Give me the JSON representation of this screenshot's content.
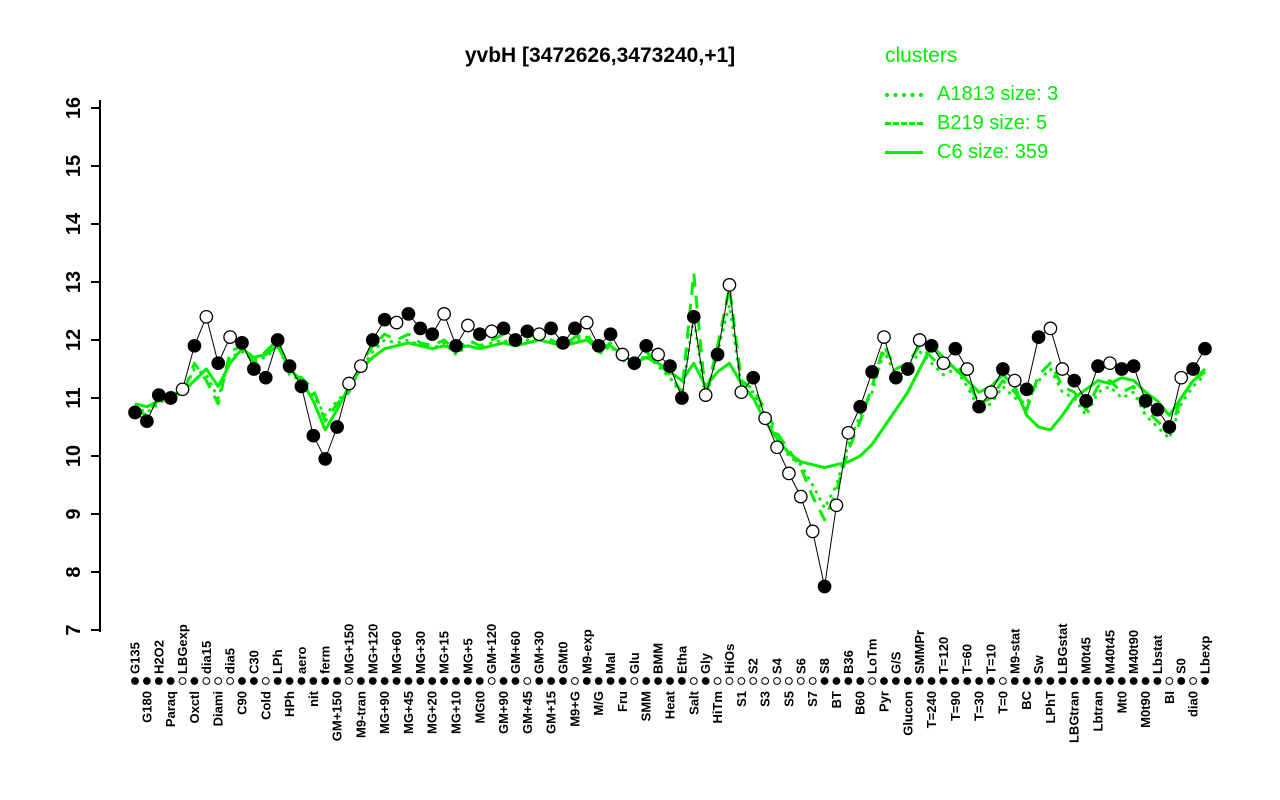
{
  "header": {
    "title": "yvbH [3472626,3473240,+1]"
  },
  "legend": {
    "title": "clusters",
    "entries": [
      {
        "label": "A1813 size: 3",
        "style": "dotted"
      },
      {
        "label": "B219 size: 5",
        "style": "dashed"
      },
      {
        "label": "C6 size: 359",
        "style": "solid"
      }
    ]
  },
  "colors": {
    "cluster": "#00ee00",
    "point_stroke": "#000000",
    "background": "#ffffff"
  },
  "chart_data": {
    "type": "line+scatter",
    "title": "yvbH [3472626,3473240,+1]",
    "ylabel": "",
    "xlabel": "",
    "ylim": [
      7,
      16
    ],
    "yticks": [
      7,
      8,
      9,
      10,
      11,
      12,
      13,
      14,
      15,
      16
    ],
    "legend_position": "top-right",
    "grid": false,
    "categories": [
      "G135",
      "G180",
      "H2O2",
      "Paraq",
      "LBGexp",
      "Oxctl",
      "dia15",
      "Diami",
      "dia5",
      "C90",
      "C30",
      "Cold",
      "LPh",
      "HPh",
      "aero",
      "nit",
      "ferm",
      "GM+150",
      "MG+150",
      "M9-tran",
      "MG+120",
      "MG+90",
      "MG+60",
      "MG+45",
      "MG+30",
      "MG+20",
      "MG+15",
      "MG+10",
      "MG+5",
      "MGt0",
      "GM+120",
      "GM+90",
      "GM+60",
      "GM+45",
      "GM+30",
      "GM+15",
      "GMt0",
      "M9+G",
      "M9-exp",
      "M/G",
      "Mal",
      "Fru",
      "Glu",
      "SMM",
      "BMM",
      "Heat",
      "Etha",
      "Salt",
      "Gly",
      "HiTm",
      "HiOs",
      "S1",
      "S2",
      "S3",
      "S4",
      "S5",
      "S6",
      "S7",
      "S8",
      "BT",
      "B36",
      "B60",
      "LoTm",
      "Pyr",
      "G/S",
      "Glucon",
      "SMMPr",
      "T=240",
      "T=120",
      "T=90",
      "T=60",
      "T=30",
      "T=10",
      "T=0",
      "M9-stat",
      "BC",
      "Sw",
      "LPhT",
      "LBGstat",
      "LBGtran",
      "M0t45",
      "Lbtran",
      "M40t45",
      "Mt0",
      "M40t90",
      "M0t90",
      "Lbstat",
      "BI",
      "S0",
      "dia0",
      "Lbexp"
    ],
    "points": [
      10.75,
      10.6,
      11.05,
      11.0,
      11.15,
      11.9,
      12.4,
      11.6,
      12.05,
      11.95,
      11.5,
      11.35,
      12.0,
      11.55,
      11.2,
      10.35,
      9.95,
      10.5,
      11.25,
      11.55,
      12.0,
      12.35,
      12.3,
      12.45,
      12.2,
      12.1,
      12.45,
      11.9,
      12.25,
      12.1,
      12.15,
      12.2,
      12.0,
      12.15,
      12.1,
      12.2,
      11.95,
      12.2,
      12.3,
      11.9,
      12.1,
      11.75,
      11.6,
      11.9,
      11.75,
      11.55,
      11.0,
      12.4,
      11.05,
      11.75,
      12.95,
      11.1,
      11.35,
      10.65,
      10.15,
      9.7,
      9.3,
      8.7,
      7.75,
      9.15,
      10.4,
      10.85,
      11.45,
      12.05,
      11.35,
      11.5,
      12.0,
      11.9,
      11.6,
      11.85,
      11.5,
      10.85,
      11.1,
      11.5,
      11.3,
      11.15,
      12.05,
      12.2,
      11.5,
      11.3,
      10.95,
      11.55,
      11.6,
      11.5,
      11.55,
      10.95,
      10.8,
      10.5,
      11.35,
      11.5,
      11.85
    ],
    "point_filled": [
      1,
      1,
      1,
      1,
      0,
      1,
      0,
      1,
      0,
      1,
      1,
      1,
      1,
      1,
      1,
      1,
      1,
      1,
      0,
      0,
      1,
      1,
      0,
      1,
      1,
      1,
      0,
      1,
      0,
      1,
      0,
      1,
      1,
      1,
      0,
      1,
      1,
      1,
      0,
      1,
      1,
      0,
      1,
      1,
      0,
      1,
      1,
      1,
      0,
      1,
      0,
      0,
      1,
      0,
      0,
      0,
      0,
      0,
      1,
      0,
      0,
      1,
      1,
      0,
      1,
      1,
      0,
      1,
      0,
      1,
      0,
      1,
      0,
      1,
      0,
      1,
      1,
      0,
      0,
      1,
      1,
      1,
      0,
      1,
      1,
      1,
      1,
      1,
      0,
      1,
      1
    ],
    "strip_filled": [
      1,
      1,
      1,
      1,
      0,
      1,
      0,
      0,
      0,
      1,
      1,
      0,
      1,
      1,
      1,
      1,
      1,
      1,
      0,
      1,
      1,
      1,
      1,
      1,
      1,
      1,
      1,
      1,
      1,
      1,
      0,
      1,
      1,
      0,
      1,
      1,
      1,
      0,
      1,
      1,
      1,
      1,
      0,
      1,
      1,
      1,
      1,
      0,
      1,
      0,
      0,
      0,
      0,
      0,
      0,
      0,
      0,
      0,
      1,
      1,
      1,
      1,
      0,
      1,
      1,
      1,
      1,
      1,
      1,
      1,
      1,
      1,
      1,
      0,
      1,
      1,
      1,
      1,
      1,
      1,
      1,
      1,
      1,
      1,
      1,
      1,
      1,
      0,
      1,
      0,
      1
    ],
    "series": [
      {
        "name": "A1813",
        "size": 3,
        "style": "dotted",
        "values": [
          10.85,
          10.75,
          10.9,
          11.05,
          11.1,
          11.5,
          11.4,
          11.0,
          11.7,
          11.8,
          11.65,
          11.7,
          11.9,
          11.45,
          11.25,
          11.05,
          10.7,
          10.95,
          11.15,
          11.5,
          11.8,
          12.0,
          11.95,
          12.0,
          11.9,
          11.85,
          11.95,
          11.75,
          11.9,
          11.85,
          11.95,
          12.0,
          11.9,
          12.0,
          12.0,
          11.95,
          11.85,
          12.0,
          12.05,
          11.75,
          11.9,
          11.65,
          11.55,
          11.75,
          11.55,
          11.35,
          11.05,
          12.4,
          10.95,
          11.8,
          12.6,
          11.2,
          11.1,
          10.7,
          10.35,
          10.0,
          9.85,
          9.5,
          9.1,
          9.5,
          10.2,
          10.7,
          11.1,
          11.8,
          11.4,
          11.5,
          11.8,
          11.6,
          11.4,
          11.5,
          11.2,
          10.8,
          10.9,
          11.2,
          11.0,
          10.9,
          11.3,
          11.5,
          11.1,
          11.0,
          10.7,
          11.1,
          11.2,
          11.0,
          11.1,
          10.7,
          10.5,
          10.3,
          10.9,
          11.2,
          11.4
        ]
      },
      {
        "name": "B219",
        "size": 5,
        "style": "dashed",
        "values": [
          10.8,
          10.7,
          11.0,
          11.1,
          11.05,
          11.6,
          11.3,
          10.9,
          11.8,
          11.9,
          11.6,
          11.8,
          12.0,
          11.4,
          11.35,
          11.15,
          10.6,
          10.9,
          11.1,
          11.6,
          11.9,
          12.1,
          12.0,
          12.1,
          11.95,
          11.9,
          12.0,
          11.8,
          12.0,
          11.9,
          12.0,
          12.1,
          11.95,
          12.05,
          12.1,
          12.0,
          11.9,
          12.05,
          12.1,
          11.8,
          11.95,
          11.7,
          11.5,
          11.8,
          11.6,
          11.4,
          11.1,
          13.15,
          11.0,
          11.9,
          12.9,
          11.3,
          11.15,
          10.8,
          10.4,
          10.1,
          9.8,
          9.3,
          8.9,
          9.4,
          10.1,
          10.6,
          11.2,
          11.9,
          11.5,
          11.6,
          11.9,
          11.7,
          11.5,
          11.6,
          11.3,
          10.9,
          11.0,
          11.3,
          11.1,
          10.8,
          11.4,
          11.6,
          11.2,
          11.1,
          10.8,
          11.2,
          11.3,
          11.1,
          11.2,
          10.8,
          10.6,
          10.4,
          11.0,
          11.3,
          11.5
        ]
      },
      {
        "name": "C6",
        "size": 359,
        "style": "solid",
        "values": [
          10.9,
          10.85,
          10.95,
          11.05,
          11.1,
          11.3,
          11.5,
          11.2,
          11.6,
          11.85,
          11.7,
          11.75,
          11.9,
          11.5,
          11.3,
          10.95,
          10.45,
          10.8,
          11.2,
          11.5,
          11.7,
          11.85,
          11.9,
          11.95,
          11.9,
          11.85,
          11.9,
          11.85,
          11.9,
          11.85,
          11.9,
          11.95,
          11.9,
          11.95,
          12.0,
          11.95,
          11.9,
          11.95,
          12.0,
          11.85,
          11.9,
          11.75,
          11.6,
          11.7,
          11.6,
          11.45,
          11.3,
          11.6,
          11.2,
          11.45,
          11.6,
          11.25,
          11.0,
          10.6,
          10.3,
          10.05,
          9.9,
          9.85,
          9.8,
          9.85,
          9.9,
          10.0,
          10.2,
          10.5,
          10.8,
          11.1,
          11.5,
          11.9,
          11.7,
          11.5,
          11.3,
          11.1,
          11.2,
          11.4,
          11.2,
          10.7,
          10.5,
          10.45,
          10.7,
          11.0,
          11.15,
          11.3,
          11.25,
          11.35,
          11.3,
          11.1,
          10.95,
          10.7,
          11.0,
          11.3,
          11.45
        ]
      }
    ]
  }
}
